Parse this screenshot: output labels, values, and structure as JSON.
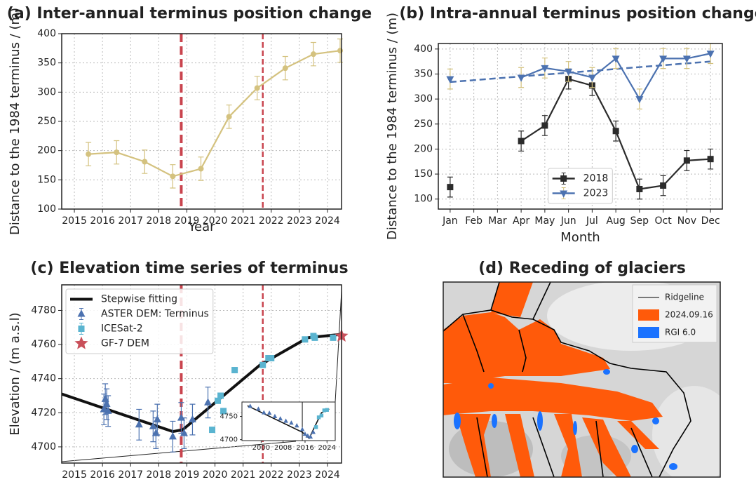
{
  "chart_data": [
    {
      "type": "line",
      "title": "(a) Inter-annual terminus position change",
      "xlabel": "Year",
      "ylabel": "Distance to the 1984 terminus / (m)",
      "xlim": [
        2014.55,
        2024.5
      ],
      "xticks": [
        2015,
        2016,
        2017,
        2018,
        2019,
        2020,
        2021,
        2022,
        2023,
        2024
      ],
      "ylim": [
        100,
        400
      ],
      "yticks": [
        100,
        150,
        200,
        250,
        300,
        350,
        400
      ],
      "grid": true,
      "vlines": [
        2018.8,
        2021.7
      ],
      "vline_color": "#c9444e",
      "series": [
        {
          "color": "#d4c27f",
          "marker": "circle",
          "line": true,
          "x": [
            2015.5,
            2016.5,
            2017.5,
            2018.5,
            2019.5,
            2020.5,
            2021.5,
            2022.5,
            2023.5,
            2024.45
          ],
          "values": [
            194,
            197,
            181,
            156,
            169,
            258,
            307,
            341,
            365,
            371
          ],
          "errors": [
            20,
            20,
            20,
            20,
            20,
            20,
            20,
            20,
            20,
            20
          ]
        }
      ]
    },
    {
      "type": "line",
      "title": "(b) Intra-annual terminus position change",
      "xlabel": "Month",
      "ylabel": "Distance to the 1984 terminus / (m)",
      "categories": [
        "Jan",
        "Feb",
        "Mar",
        "Apr",
        "May",
        "Jun",
        "Jul",
        "Aug",
        "Sep",
        "Oct",
        "Nov",
        "Dec"
      ],
      "ylim": [
        80,
        411
      ],
      "yticks": [
        100,
        150,
        200,
        250,
        300,
        350,
        400
      ],
      "grid": true,
      "legend": "lower center",
      "series": [
        {
          "name": "2018",
          "color": "#2b2b2b",
          "marker": "square",
          "line": true,
          "values": [
            124,
            null,
            null,
            216,
            247,
            340,
            327,
            236,
            120,
            127,
            177,
            180
          ],
          "errors": [
            20,
            null,
            null,
            20,
            20,
            20,
            20,
            20,
            20,
            20,
            20,
            20
          ]
        },
        {
          "name": "2023",
          "color": "#4c72b0",
          "error_color": "#d4c27f",
          "marker": "triangle-down",
          "line": true,
          "values": [
            340,
            null,
            null,
            343,
            362,
            355,
            343,
            381,
            300,
            381,
            381,
            391
          ],
          "errors": [
            20,
            null,
            null,
            20,
            20,
            20,
            20,
            20,
            20,
            20,
            20,
            20
          ]
        }
      ],
      "trend": {
        "start": 334,
        "end": 375,
        "color": "#4c72b0"
      }
    },
    {
      "type": "scatter",
      "title": "(c) Elevation time series of terminus",
      "ylabel": "Elevation / (m a.s.l)",
      "xlim": [
        2014.55,
        2024.5
      ],
      "xticks": [
        2015,
        2016,
        2017,
        2018,
        2019,
        2020,
        2021,
        2022,
        2023,
        2024
      ],
      "ylim": [
        4690.5,
        4795
      ],
      "yticks": [
        4700,
        4720,
        4740,
        4760,
        4780
      ],
      "grid": true,
      "vlines": [
        2018.8,
        2021.7
      ],
      "vline_color": "#c9444e",
      "legend": "upper left",
      "series": [
        {
          "name": "Stepwise fitting",
          "color": "#111111",
          "line": true,
          "x": [
            2014.55,
            2018.5,
            2018.85,
            2021.6,
            2023.3,
            2024.5
          ],
          "values": [
            4731,
            4709,
            4710,
            4748,
            4764,
            4766
          ]
        },
        {
          "name": "ASTER DEM: Terminus",
          "color": "#4c72b0",
          "marker": "triangle",
          "x": [
            2016.05,
            2016.1,
            2016.15,
            2016.2,
            2017.3,
            2017.8,
            2017.9,
            2017.95,
            2018.5,
            2018.8,
            2018.9,
            2019.2,
            2019.75
          ],
          "values": [
            4722,
            4728,
            4725,
            4721,
            4713,
            4712,
            4708,
            4716,
            4706,
            4717,
            4708,
            4716,
            4726
          ],
          "errors": [
            9,
            9,
            9,
            9,
            9,
            9,
            9,
            9,
            9,
            9,
            9,
            9,
            9
          ]
        },
        {
          "name": "ICESat-2",
          "color": "#5ab4d0",
          "marker": "square",
          "x": [
            2019.9,
            2020.1,
            2020.2,
            2020.3,
            2020.7,
            2021.7,
            2021.9,
            2022.0,
            2023.2,
            2023.5,
            2023.55,
            2024.2
          ],
          "values": [
            4710,
            4727,
            4730,
            4721,
            4745,
            4748,
            4752,
            4752,
            4763,
            4765,
            4764,
            4764
          ],
          "errors": [
            1.5,
            1.5,
            1.5,
            1.5,
            1.5,
            1.5,
            1.5,
            1.5,
            1.5,
            1.5,
            1.5,
            1.5
          ]
        },
        {
          "name": "GF-7 DEM",
          "color": "#c9505a",
          "marker": "star",
          "x": [
            2024.5
          ],
          "values": [
            4765
          ]
        }
      ]
    },
    {
      "type": "scatter",
      "xlim": [
        1993,
        2027
      ],
      "xticks": [
        2000,
        2008,
        2016,
        2024
      ],
      "ylim": [
        4698,
        4781
      ],
      "yticks": [
        4700,
        4750
      ],
      "grid": false,
      "vlines": [
        2015
      ],
      "vline_color": "#111111",
      "series": [
        {
          "color": "#111111",
          "line": true,
          "x": [
            1995,
            2015,
            2017.5,
            2022,
            2024.8
          ],
          "values": [
            4773,
            4716,
            4703,
            4758,
            4766
          ]
        },
        {
          "color": "#4c72b0",
          "marker": "triangle",
          "x": [
            1996,
            1999,
            2001,
            2003,
            2005,
            2007,
            2009,
            2011,
            2013,
            2015,
            2016,
            2017,
            2018,
            2019
          ],
          "values": [
            4772,
            4766,
            4758,
            4757,
            4750,
            4745,
            4740,
            4736,
            4730,
            4722,
            4712,
            4708,
            4706,
            4716
          ]
        },
        {
          "color": "#5ab4d0",
          "marker": "square",
          "x": [
            2020,
            2021,
            2022,
            2023,
            2024
          ],
          "values": [
            4727,
            4748,
            4752,
            4763,
            4764
          ]
        }
      ]
    },
    {
      "type": "map",
      "title": "(d) Receding of glaciers",
      "series": [
        {
          "name": "Ridgeline",
          "color": "#000000"
        },
        {
          "name": "2024.09.16",
          "color": "#ff5a0a"
        },
        {
          "name": "RGI 6.0",
          "color": "#1a72ff"
        }
      ]
    }
  ]
}
